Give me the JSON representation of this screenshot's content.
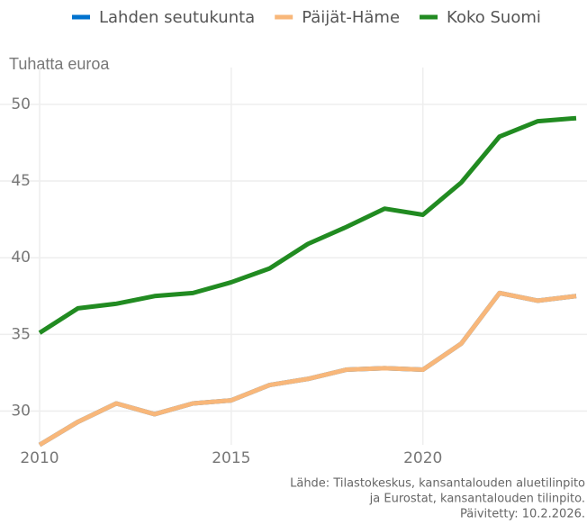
{
  "chart_data": {
    "type": "line",
    "y_label": "Tuhatta euroa",
    "caption": [
      "Lähde: Tilastokeskus, kansantalouden aluetilinpito",
      "ja Eurostat, kansantalouden tilinpito.",
      "Päivitetty: 10.2.2026."
    ],
    "x": [
      2010,
      2011,
      2012,
      2013,
      2014,
      2015,
      2016,
      2017,
      2018,
      2019,
      2020,
      2021,
      2022,
      2023,
      2024
    ],
    "series": [
      {
        "name": "Lahden seutukunta",
        "color": "#0072ce",
        "values": [
          27.8,
          29.3,
          30.5,
          29.8,
          30.5,
          30.7,
          31.7,
          32.1,
          32.7,
          32.8,
          32.7,
          34.4,
          37.7,
          37.2,
          37.5
        ]
      },
      {
        "name": "Päijät-Häme",
        "color": "#f8b77a",
        "values": [
          27.8,
          29.3,
          30.5,
          29.8,
          30.5,
          30.7,
          31.7,
          32.1,
          32.7,
          32.8,
          32.7,
          34.4,
          37.7,
          37.2,
          37.5
        ]
      },
      {
        "name": "Koko Suomi",
        "color": "#218b21",
        "values": [
          35.1,
          36.7,
          37.0,
          37.5,
          37.7,
          38.4,
          39.3,
          40.9,
          42.0,
          43.2,
          42.8,
          44.9,
          47.9,
          48.9,
          49.1
        ]
      }
    ],
    "xlim": [
      2010,
      2024
    ],
    "xticks": [
      2010,
      2015,
      2020
    ],
    "ylim": [
      27.8,
      52.4
    ],
    "yticks": [
      30,
      35,
      40,
      45,
      50
    ],
    "grid": true
  }
}
